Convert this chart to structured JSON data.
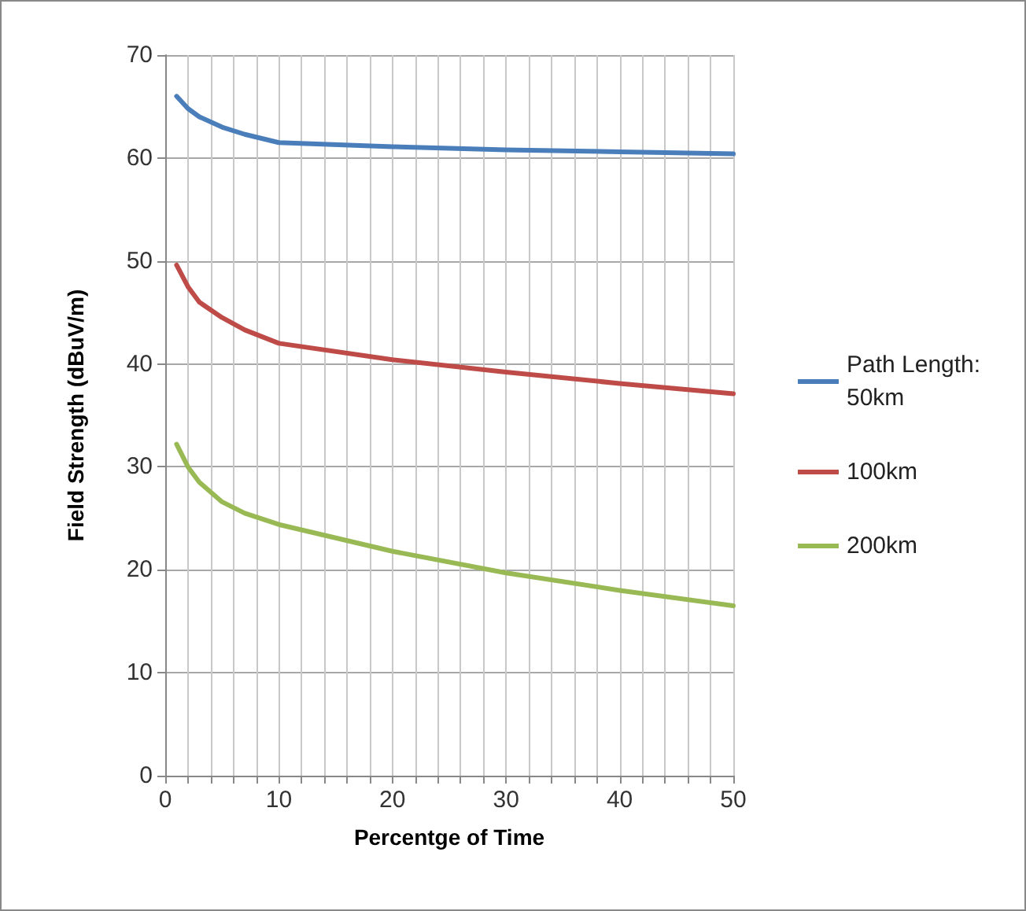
{
  "chart_data": {
    "type": "line",
    "xlabel": "Percentge of Time",
    "ylabel": "Field Strength (dBuV/m)",
    "x": [
      1,
      2,
      3,
      5,
      7,
      10,
      20,
      30,
      40,
      50
    ],
    "series": [
      {
        "name": "Path Length: 50km",
        "color": "#4a7ebb",
        "values": [
          66.0,
          64.8,
          64.0,
          63.0,
          62.3,
          61.5,
          61.1,
          60.8,
          60.6,
          60.4
        ]
      },
      {
        "name": "100km",
        "color": "#be4b48",
        "values": [
          49.6,
          47.5,
          46.0,
          44.5,
          43.3,
          42.0,
          40.4,
          39.2,
          38.1,
          37.1
        ]
      },
      {
        "name": "200km",
        "color": "#98b954",
        "values": [
          32.2,
          30.0,
          28.5,
          26.6,
          25.5,
          24.4,
          21.8,
          19.7,
          18.0,
          16.5
        ]
      }
    ],
    "xlim": [
      0,
      50
    ],
    "xticks": [
      0,
      {
        "value": 2,
        "label": null
      },
      {
        "value": 4,
        "label": null
      },
      {
        "value": 6,
        "label": null
      },
      {
        "value": 8,
        "label": null
      },
      10,
      {
        "value": 12,
        "label": null
      },
      {
        "value": 14,
        "label": null
      },
      {
        "value": 16,
        "label": null
      },
      {
        "value": 18,
        "label": null
      },
      20,
      {
        "value": 22,
        "label": null
      },
      {
        "value": 24,
        "label": null
      },
      {
        "value": 26,
        "label": null
      },
      {
        "value": 28,
        "label": null
      },
      30,
      {
        "value": 32,
        "label": null
      },
      {
        "value": 34,
        "label": null
      },
      {
        "value": 36,
        "label": null
      },
      {
        "value": 38,
        "label": null
      },
      40,
      {
        "value": 42,
        "label": null
      },
      {
        "value": 44,
        "label": null
      },
      {
        "value": 46,
        "label": null
      },
      {
        "value": 48,
        "label": null
      },
      50
    ],
    "ylim": [
      0,
      70
    ],
    "yticks": [
      0,
      10,
      20,
      30,
      40,
      50,
      60,
      70
    ],
    "grid": true,
    "legend": "right",
    "marker": "none",
    "line_style": "solid"
  }
}
